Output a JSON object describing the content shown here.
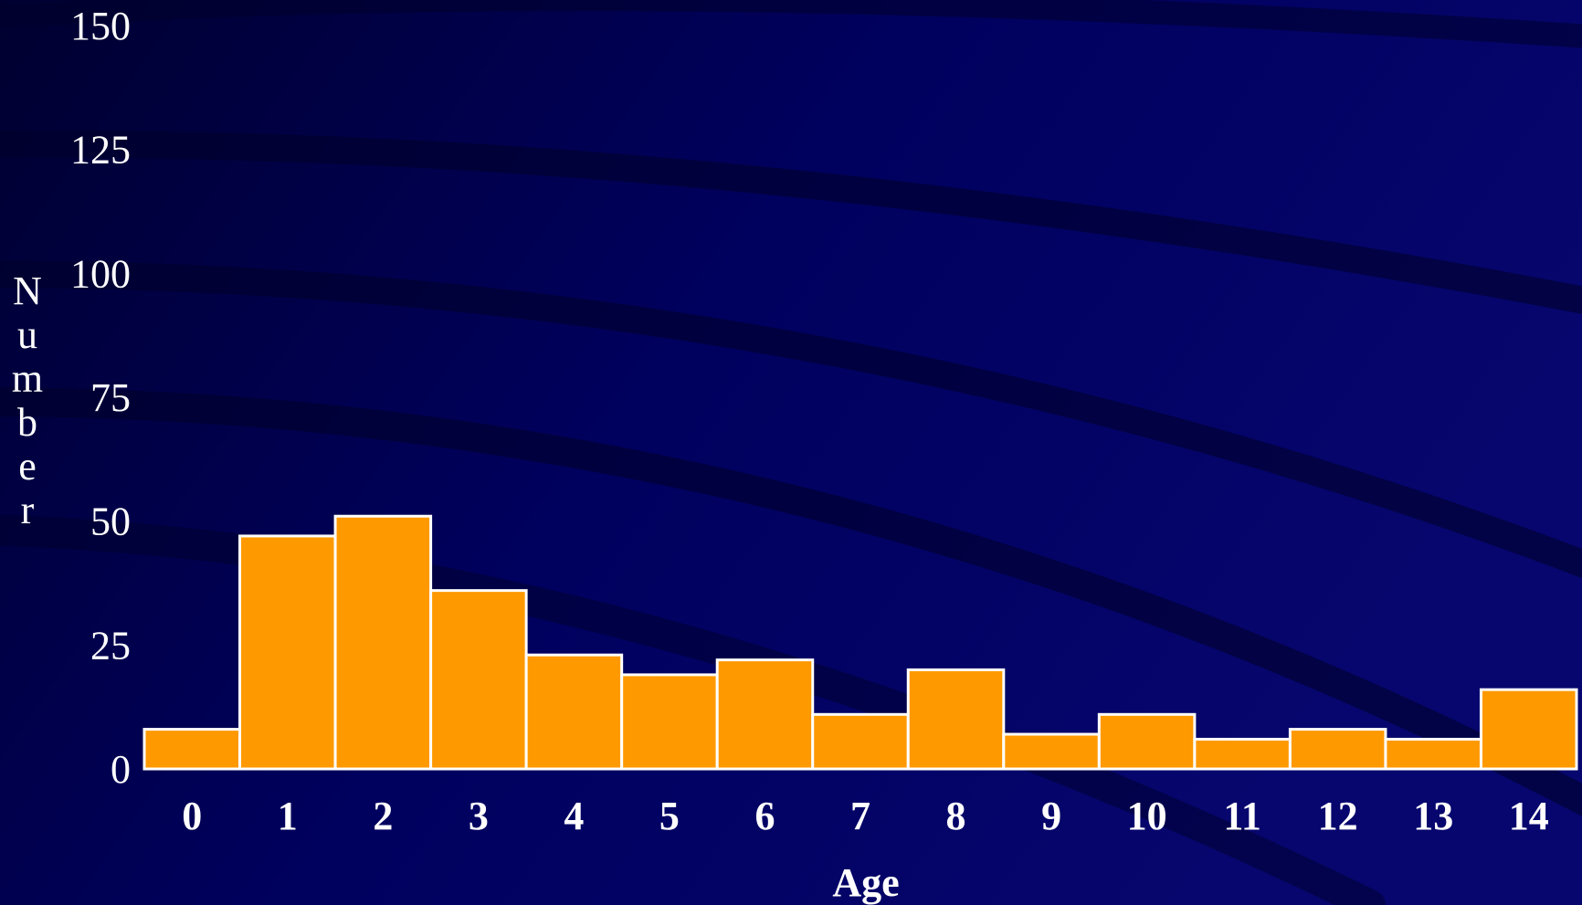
{
  "chart_data": {
    "type": "bar",
    "categories": [
      "0",
      "1",
      "2",
      "3",
      "4",
      "5",
      "6",
      "7",
      "8",
      "9",
      "10",
      "11",
      "12",
      "13",
      "14"
    ],
    "values": [
      8,
      47,
      51,
      36,
      23,
      19,
      22,
      11,
      20,
      7,
      11,
      6,
      8,
      6,
      16
    ],
    "xlabel": "Age",
    "ylabel": "Number",
    "ylim": [
      0,
      150
    ],
    "yticks": [
      "0",
      "25",
      "50",
      "75",
      "100",
      "125",
      "150"
    ],
    "grid": false,
    "legend": "none",
    "bar_color": "#FF9900",
    "bar_edge_color": "#FFFFFF",
    "background_color": "#000060"
  }
}
